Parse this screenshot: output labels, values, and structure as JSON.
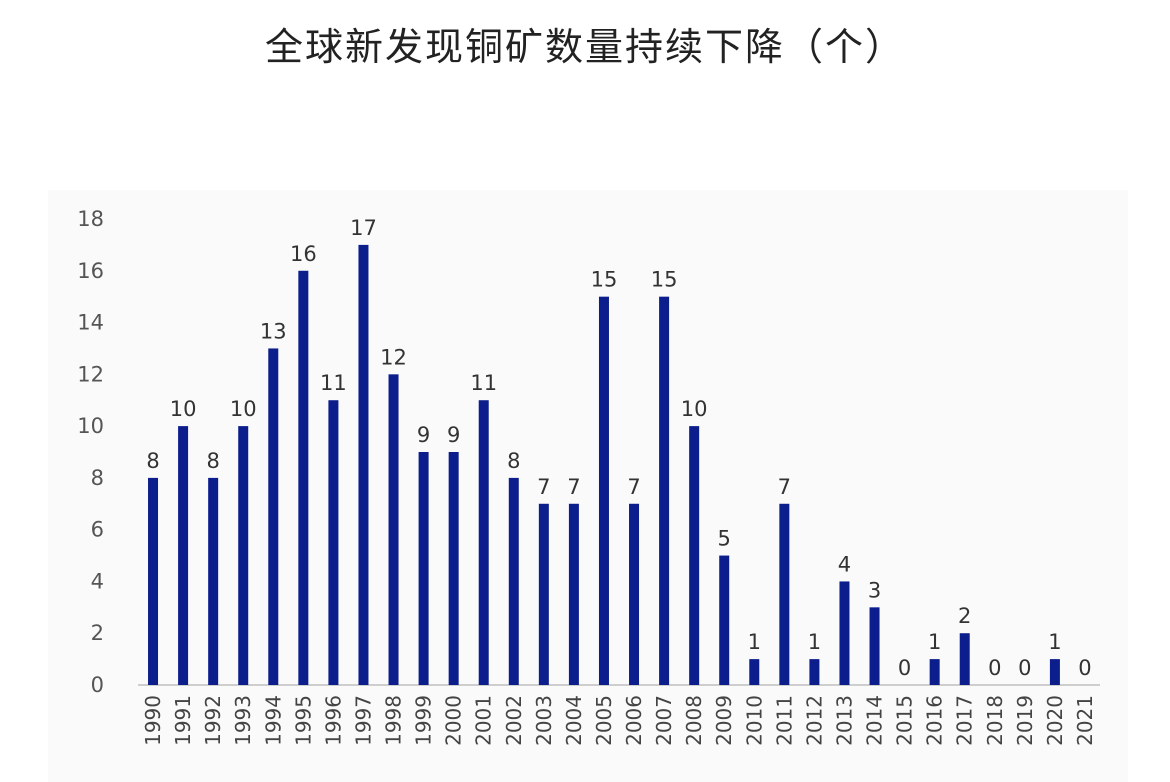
{
  "title": "全球新发现铜矿数量持续下降（个）",
  "colors": {
    "bar": "#0c1e8c",
    "axis": "#bfbfbf",
    "background": "#fafafa"
  },
  "chart_data": {
    "type": "bar",
    "title": "全球新发现铜矿数量持续下降（个）",
    "xlabel": "",
    "ylabel": "",
    "ylim": [
      0,
      18
    ],
    "yticks": [
      0,
      2,
      4,
      6,
      8,
      10,
      12,
      14,
      16,
      18
    ],
    "grid": false,
    "legend": "none",
    "categories": [
      "1990",
      "1991",
      "1992",
      "1993",
      "1994",
      "1995",
      "1996",
      "1997",
      "1998",
      "1999",
      "2000",
      "2001",
      "2002",
      "2003",
      "2004",
      "2005",
      "2006",
      "2007",
      "2008",
      "2009",
      "2010",
      "2011",
      "2012",
      "2013",
      "2014",
      "2015",
      "2016",
      "2017",
      "2018",
      "2019",
      "2020",
      "2021"
    ],
    "values": [
      8,
      10,
      8,
      10,
      13,
      16,
      11,
      17,
      12,
      9,
      9,
      11,
      8,
      7,
      7,
      15,
      7,
      15,
      10,
      5,
      1,
      7,
      1,
      4,
      3,
      0,
      1,
      2,
      0,
      0,
      1,
      0
    ]
  }
}
